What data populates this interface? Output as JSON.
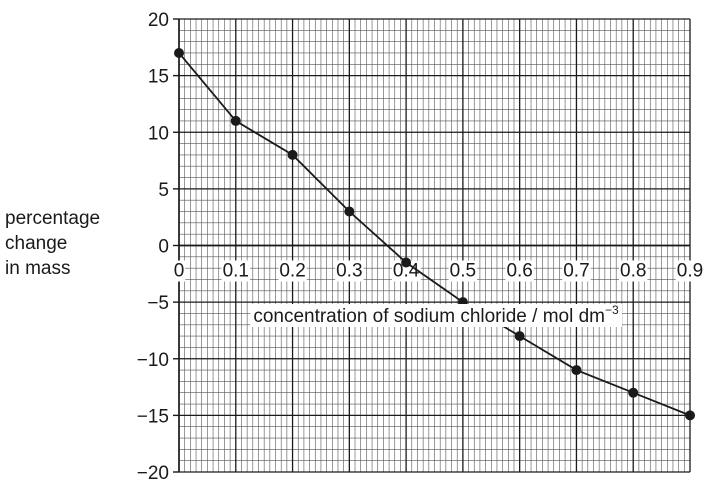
{
  "chart_data": {
    "type": "line",
    "title": "",
    "xlabel": "concentration of sodium chloride / mol dm",
    "xlabel_sup": "−3",
    "ylabel_lines": [
      "percentage",
      "change",
      "in mass"
    ],
    "x": [
      0,
      0.1,
      0.2,
      0.3,
      0.4,
      0.5,
      0.6,
      0.7,
      0.8,
      0.9
    ],
    "y": [
      17,
      11,
      8,
      3,
      -1.5,
      -5,
      -8,
      -11,
      -13,
      -15
    ],
    "xlim": [
      0,
      0.9
    ],
    "ylim": [
      -20,
      20
    ],
    "x_ticks": [
      "0",
      "0.1",
      "0.2",
      "0.3",
      "0.4",
      "0.5",
      "0.6",
      "0.7",
      "0.8",
      "0.9"
    ],
    "y_ticks": [
      "20",
      "15",
      "10",
      "5",
      "0",
      "−5",
      "−10",
      "−15",
      "−20"
    ],
    "grid": true,
    "colors": {
      "line": "#1a1a1a",
      "grid": "#555555",
      "major_grid": "#1a1a1a"
    }
  }
}
